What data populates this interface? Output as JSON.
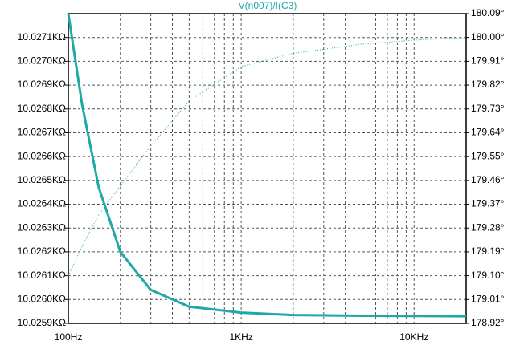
{
  "chart_data": {
    "type": "line",
    "title": "V(n007)/I(C3)",
    "x": [
      100,
      120,
      150,
      200,
      300,
      500,
      1000,
      2000,
      5000,
      10000,
      20000
    ],
    "xscale": "log",
    "xlim": [
      100,
      20000
    ],
    "xticks": [
      {
        "value": 100,
        "label": "100Hz"
      },
      {
        "value": 1000,
        "label": "1KHz"
      },
      {
        "value": 10000,
        "label": "10KHz"
      }
    ],
    "x_minor_grid": [
      200,
      300,
      400,
      500,
      600,
      700,
      800,
      900,
      2000,
      3000,
      4000,
      5000,
      6000,
      7000,
      8000,
      9000
    ],
    "ylim": [
      10025.9,
      10027.2
    ],
    "yticks": [
      {
        "value": 10025.9,
        "label": "10.0259KΩ"
      },
      {
        "value": 10026.0,
        "label": "10.0260KΩ"
      },
      {
        "value": 10026.1,
        "label": "10.0261KΩ"
      },
      {
        "value": 10026.2,
        "label": "10.0262KΩ"
      },
      {
        "value": 10026.3,
        "label": "10.0263KΩ"
      },
      {
        "value": 10026.4,
        "label": "10.0264KΩ"
      },
      {
        "value": 10026.5,
        "label": "10.0265KΩ"
      },
      {
        "value": 10026.6,
        "label": "10.0266KΩ"
      },
      {
        "value": 10026.7,
        "label": "10.0267KΩ"
      },
      {
        "value": 10026.8,
        "label": "10.0268KΩ"
      },
      {
        "value": 10026.9,
        "label": "10.0269KΩ"
      },
      {
        "value": 10027.0,
        "label": "10.0270KΩ"
      },
      {
        "value": 10027.1,
        "label": "10.0271KΩ"
      }
    ],
    "y2lim": [
      178.92,
      180.09
    ],
    "y2ticks": [
      {
        "value": 178.92,
        "label": "178.92°"
      },
      {
        "value": 179.01,
        "label": "179.01°"
      },
      {
        "value": 179.1,
        "label": "179.10°"
      },
      {
        "value": 179.19,
        "label": "179.19°"
      },
      {
        "value": 179.28,
        "label": "179.28°"
      },
      {
        "value": 179.37,
        "label": "179.37°"
      },
      {
        "value": 179.46,
        "label": "179.46°"
      },
      {
        "value": 179.55,
        "label": "179.55°"
      },
      {
        "value": 179.64,
        "label": "179.64°"
      },
      {
        "value": 179.73,
        "label": "179.73°"
      },
      {
        "value": 179.82,
        "label": "179.82°"
      },
      {
        "value": 179.91,
        "label": "179.91°"
      },
      {
        "value": 180.0,
        "label": "180.00°"
      },
      {
        "value": 180.09,
        "label": "180.09°"
      }
    ],
    "grid": true,
    "series": [
      {
        "color": "#1fa8a8",
        "style": "solid",
        "axis": "y",
        "values": [
          10027.2,
          10026.82,
          10026.47,
          10026.2,
          10026.04,
          10025.97,
          10025.945,
          10025.935,
          10025.932,
          10025.931,
          10025.93
        ]
      },
      {
        "color": "#1fa8a8",
        "style": "dotted",
        "axis": "y2",
        "values": [
          179.1,
          179.21,
          179.33,
          179.44,
          179.59,
          179.76,
          179.89,
          179.94,
          179.975,
          179.99,
          180.0
        ]
      }
    ]
  }
}
